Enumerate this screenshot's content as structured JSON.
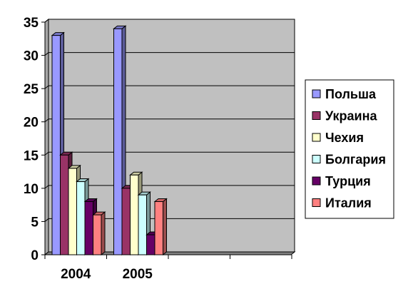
{
  "chart_data": {
    "type": "bar",
    "title": "",
    "xlabel": "",
    "ylabel": "",
    "categories": [
      "2004",
      "2005"
    ],
    "ylim": [
      0,
      35
    ],
    "yticks": [
      "0",
      "5",
      "10",
      "15",
      "20",
      "25",
      "30",
      "35"
    ],
    "grid": true,
    "legend_position": "right",
    "plot_background": "#c0c0c0",
    "series": [
      {
        "name": "Польша",
        "values": [
          33,
          34
        ],
        "color": "#9999ff"
      },
      {
        "name": "Украина",
        "values": [
          15,
          10
        ],
        "color": "#993366"
      },
      {
        "name": "Чехия",
        "values": [
          13,
          12
        ],
        "color": "#ffffcc"
      },
      {
        "name": "Болгария",
        "values": [
          11,
          9
        ],
        "color": "#ccffff"
      },
      {
        "name": "Турция",
        "values": [
          8,
          3
        ],
        "color": "#660066"
      },
      {
        "name": "Италия",
        "values": [
          6,
          8
        ],
        "color": "#ff8080"
      }
    ]
  }
}
